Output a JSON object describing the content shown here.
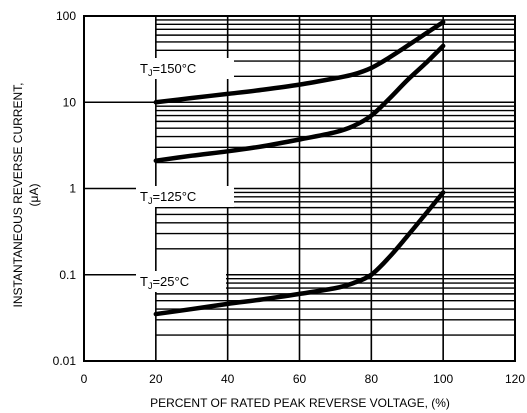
{
  "chart_data": {
    "type": "line",
    "title": "",
    "xlabel": "PERCENT OF RATED PEAK REVERSE VOLTAGE, (%)",
    "ylabel": [
      "INSTANTANEOUS REVERSE CURRENT,",
      "(μA)"
    ],
    "x_scale": "linear",
    "y_scale": "log",
    "xlim": [
      0,
      120
    ],
    "ylim": [
      0.01,
      100
    ],
    "grid": true,
    "x_ticks": [
      "0",
      "20",
      "40",
      "60",
      "80",
      "100",
      "120"
    ],
    "y_ticks": [
      "0.01",
      "0.1",
      "1",
      "10",
      "100"
    ],
    "series": [
      {
        "name": "TJ=150°C",
        "label": {
          "main": "T",
          "sub": "J",
          "rest": "=150°C"
        },
        "x": [
          20,
          30,
          40,
          50,
          60,
          70,
          75,
          80,
          85,
          90,
          95,
          100
        ],
        "y": [
          10,
          11.2,
          12.5,
          14,
          16,
          19,
          21,
          25,
          33,
          45,
          62,
          85
        ]
      },
      {
        "name": "TJ=125°C",
        "label": {
          "main": "T",
          "sub": "J",
          "rest": "=125°C"
        },
        "x": [
          20,
          30,
          40,
          50,
          60,
          70,
          75,
          80,
          85,
          90,
          95,
          100
        ],
        "y": [
          2.1,
          2.4,
          2.7,
          3.1,
          3.7,
          4.5,
          5.3,
          7,
          11,
          18,
          28,
          45
        ]
      },
      {
        "name": "TJ=25°C",
        "label": {
          "main": "T",
          "sub": "J",
          "rest": "=25°C"
        },
        "x": [
          20,
          30,
          40,
          50,
          60,
          70,
          75,
          80,
          85,
          90,
          95,
          100
        ],
        "y": [
          0.035,
          0.04,
          0.046,
          0.052,
          0.06,
          0.07,
          0.08,
          0.1,
          0.16,
          0.28,
          0.5,
          0.9
        ]
      }
    ]
  }
}
